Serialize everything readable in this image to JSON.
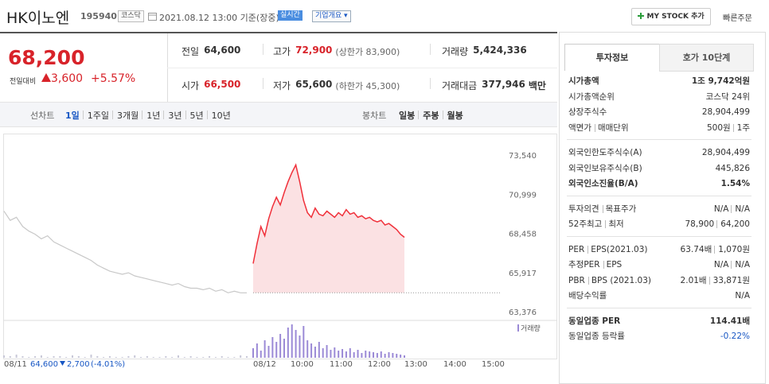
{
  "header": {
    "name": "HK이노엔",
    "code": "195940",
    "market": "코스닥",
    "timestamp": "2021.08.12 13:00 기준(장중)",
    "realtime": "실시간",
    "overview": "기업개요",
    "mystock": "MY STOCK 추가",
    "quick_order": "빠른주문"
  },
  "quote": {
    "price": "68,200",
    "change_label": "전일대비",
    "change": "3,600",
    "change_pct": "+5.57%"
  },
  "stats": [
    {
      "label": "전일",
      "value": "64,600"
    },
    {
      "label": "고가",
      "value": "72,900",
      "extra": "(상한가 83,900)"
    },
    {
      "label": "거래량",
      "value": "5,424,336"
    },
    {
      "label": "시가",
      "value": "66,500"
    },
    {
      "label": "저가",
      "value": "65,600",
      "extra": "(하한가 45,300)"
    },
    {
      "label": "거래대금",
      "value": "377,946",
      "unit": "백만"
    }
  ],
  "tabs": {
    "line_label": "선차트",
    "periods": [
      "1일",
      "1주일",
      "3개월",
      "1년",
      "3년",
      "5년",
      "10년"
    ],
    "candle_label": "봉차트",
    "candle_periods": [
      "일봉",
      "주봉",
      "월봉"
    ]
  },
  "chart": {
    "type": "line",
    "ylim": [
      63376,
      73540
    ],
    "yticks": [
      {
        "value": 73540,
        "label": "73,540"
      },
      {
        "value": 70999,
        "label": "70,999"
      },
      {
        "value": 68458,
        "label": "68,458"
      },
      {
        "value": 65917,
        "label": "65,917"
      },
      {
        "value": 63376,
        "label": "63,376"
      }
    ],
    "reference": 64600,
    "series": [
      {
        "name": "08/11",
        "color": "#c8c8c8",
        "values": [
          69900,
          69300,
          69500,
          68900,
          68600,
          68400,
          68100,
          68300,
          67900,
          67700,
          67500,
          67300,
          67100,
          66900,
          66700,
          66400,
          66200,
          66000,
          65900,
          65800,
          65900,
          65700,
          65600,
          65500,
          65400,
          65300,
          65200,
          65100,
          65200,
          65000,
          64900,
          64900,
          64800,
          64900,
          64700,
          64800,
          64600,
          64700,
          64600,
          64600
        ],
        "volume": [
          3,
          2,
          4,
          2,
          1,
          2,
          3,
          1,
          2,
          2,
          1,
          3,
          2,
          1,
          4,
          2,
          1,
          2,
          1,
          1,
          2,
          3,
          1,
          2,
          1,
          1,
          2,
          1,
          3,
          1,
          2,
          1,
          1,
          2,
          1,
          2,
          1,
          1,
          3,
          2
        ]
      },
      {
        "name": "08/12",
        "color": "#f0303a",
        "values": [
          66500,
          67800,
          68900,
          68300,
          69400,
          70200,
          70800,
          70300,
          71100,
          71800,
          72400,
          72900,
          71800,
          70600,
          69800,
          69500,
          70100,
          69700,
          69600,
          69900,
          69700,
          69500,
          69800,
          69600,
          70000,
          69700,
          69800,
          69500,
          69600,
          69400,
          69500,
          69300,
          69200,
          69300,
          69000,
          69100,
          68900,
          68700,
          68400,
          68200
        ],
        "volume": [
          12,
          18,
          9,
          22,
          15,
          26,
          20,
          30,
          24,
          38,
          42,
          35,
          28,
          40,
          22,
          18,
          14,
          20,
          12,
          16,
          10,
          13,
          9,
          11,
          8,
          12,
          7,
          10,
          6,
          9,
          8,
          7,
          6,
          8,
          5,
          7,
          6,
          5,
          4,
          3
        ]
      }
    ],
    "volume_label": "거래량",
    "x_labels": [
      "08/11",
      "08/12",
      "10:00",
      "11:00",
      "12:00",
      "13:00",
      "14:00",
      "15:00"
    ],
    "prev_summary": {
      "close": "64,600",
      "change": "2,700",
      "pct": "(-4.01%)"
    }
  },
  "info": {
    "tabs": [
      "투자정보",
      "호가 10단계"
    ],
    "groups": [
      [
        {
          "labels": [
            "시가총액"
          ],
          "values": [
            "1조 9,742억원"
          ],
          "strong": true
        },
        {
          "labels": [
            "시가총액순위"
          ],
          "values": [
            "코스닥 24위"
          ]
        },
        {
          "labels": [
            "상장주식수"
          ],
          "values": [
            "28,904,499"
          ]
        },
        {
          "labels": [
            "액면가",
            "매매단위"
          ],
          "values": [
            "500원",
            "1주"
          ]
        }
      ],
      [
        {
          "labels": [
            "외국인한도주식수(A)"
          ],
          "values": [
            "28,904,499"
          ]
        },
        {
          "labels": [
            "외국인보유주식수(B)"
          ],
          "values": [
            "445,826"
          ]
        },
        {
          "labels": [
            "외국인소진율(B/A)"
          ],
          "values": [
            "1.54%"
          ],
          "strong": true
        }
      ],
      [
        {
          "labels": [
            "투자의견",
            "목표주가"
          ],
          "values": [
            "N/A",
            "N/A"
          ]
        },
        {
          "labels": [
            "52주최고",
            "최저"
          ],
          "values": [
            "78,900",
            "64,200"
          ]
        }
      ],
      [
        {
          "labels": [
            "PER",
            "EPS(2021.03)"
          ],
          "values": [
            "63.74배",
            "1,070원"
          ]
        },
        {
          "labels": [
            "추정PER",
            "EPS"
          ],
          "values": [
            "N/A",
            "N/A"
          ]
        },
        {
          "labels": [
            "PBR",
            "BPS (2021.03)"
          ],
          "values": [
            "2.01배",
            "33,871원"
          ]
        },
        {
          "labels": [
            "배당수익률"
          ],
          "values": [
            "N/A"
          ]
        }
      ],
      [
        {
          "labels": [
            "동일업종 PER"
          ],
          "values": [
            "114.41배"
          ],
          "strong": true
        },
        {
          "labels": [
            "동일업종 등락률"
          ],
          "values": [
            "-0.22%"
          ],
          "blue": true
        }
      ]
    ]
  }
}
